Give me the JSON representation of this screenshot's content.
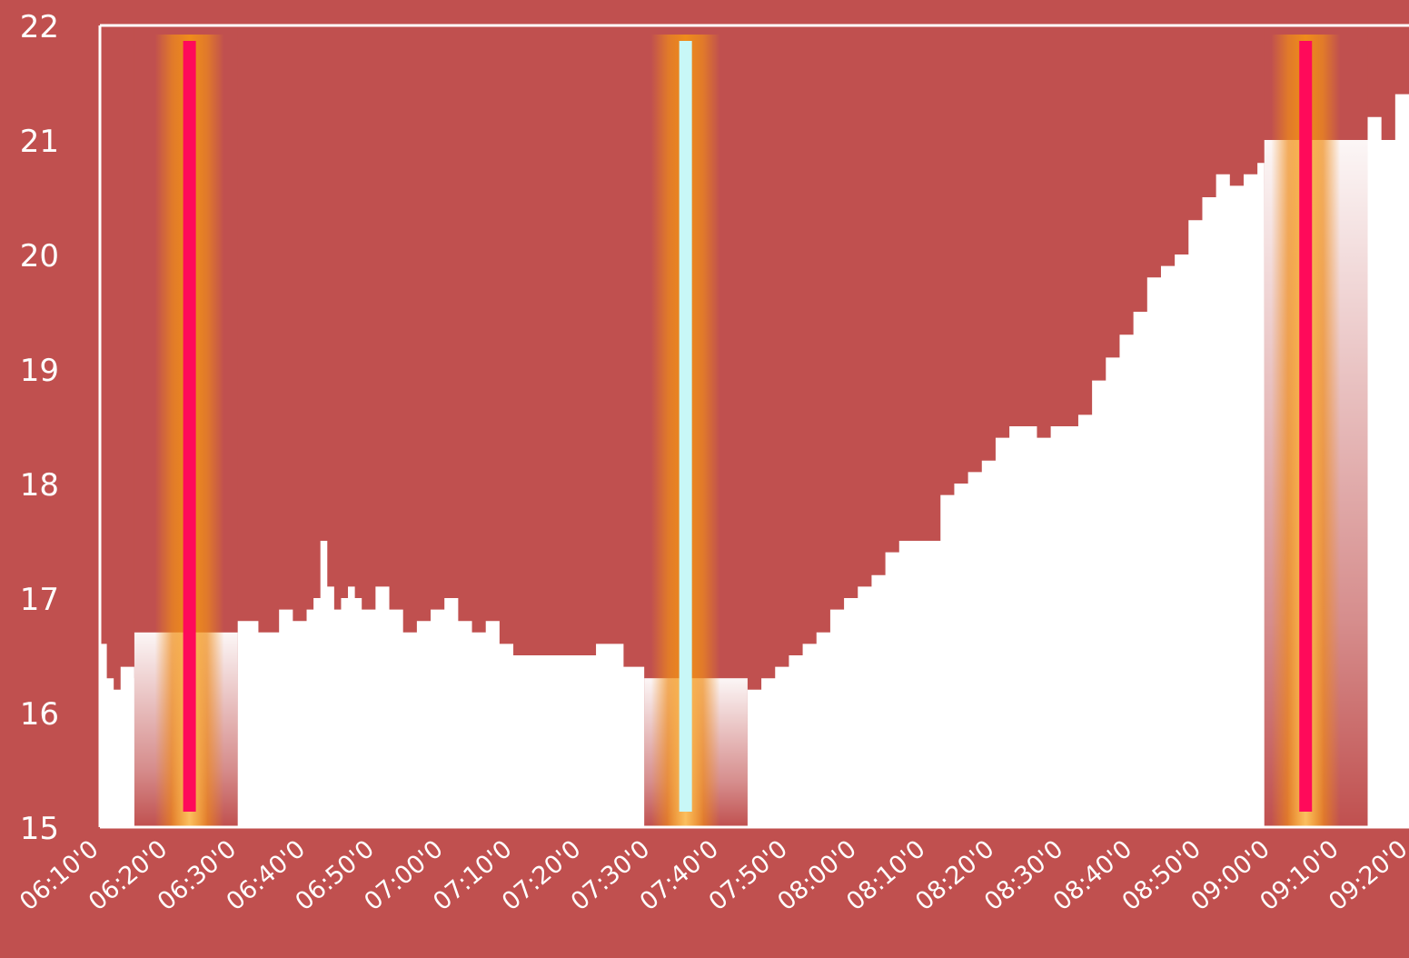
{
  "chart_data": {
    "type": "area",
    "title": "",
    "xlabel": "",
    "ylabel": "",
    "ylim": [
      15,
      22
    ],
    "xlim": [
      "06:10",
      "09:20"
    ],
    "grid": false,
    "legend": "none",
    "y_ticks": [
      "15",
      "16",
      "17",
      "18",
      "19",
      "20",
      "21",
      "22"
    ],
    "x_ticks": [
      "06:10'0",
      "06:20'0",
      "06:30'0",
      "06:40'0",
      "06:50'0",
      "07:00'0",
      "07:10'0",
      "07:20'0",
      "07:30'0",
      "07:40'0",
      "07:50'0",
      "08:00'0",
      "08:10'0",
      "08:20'0",
      "08:30'0",
      "08:40'0",
      "08:50'0",
      "09:00'0",
      "09:10'0",
      "09:20'0"
    ],
    "series": [
      {
        "x": [
          "06:10",
          "06:11",
          "06:12",
          "06:13",
          "06:14",
          "06:15",
          "06:16",
          "06:18",
          "06:20",
          "06:22",
          "06:24",
          "06:26",
          "06:28",
          "06:30",
          "06:33",
          "06:36",
          "06:38",
          "06:40",
          "06:41",
          "06:42",
          "06:43",
          "06:44",
          "06:45",
          "06:46",
          "06:47",
          "06:48",
          "06:50",
          "06:52",
          "06:54",
          "06:56",
          "06:58",
          "07:00",
          "07:02",
          "07:04",
          "07:06",
          "07:08",
          "07:10",
          "07:14",
          "07:18",
          "07:22",
          "07:26",
          "07:30",
          "07:33",
          "07:36",
          "07:38",
          "07:40",
          "07:42",
          "07:44",
          "07:46",
          "07:48",
          "07:50",
          "07:52",
          "07:54",
          "07:56",
          "07:58",
          "08:00",
          "08:02",
          "08:04",
          "08:06",
          "08:08",
          "08:10",
          "08:12",
          "08:14",
          "08:16",
          "08:18",
          "08:20",
          "08:22",
          "08:24",
          "08:26",
          "08:28",
          "08:30",
          "08:32",
          "08:34",
          "08:36",
          "08:38",
          "08:40",
          "08:42",
          "08:44",
          "08:46",
          "08:48",
          "08:50",
          "08:52",
          "08:54",
          "08:56",
          "08:58",
          "09:00",
          "09:02",
          "09:04",
          "09:06",
          "09:08",
          "09:10",
          "09:12",
          "09:14",
          "09:16",
          "09:18",
          "09:20"
        ],
        "values": [
          16.6,
          16.3,
          16.2,
          16.4,
          16.4,
          16.3,
          16.4,
          16.4,
          16.6,
          16.7,
          16.8,
          16.9,
          16.8,
          16.8,
          16.7,
          16.9,
          16.8,
          16.9,
          17.0,
          17.5,
          17.1,
          16.9,
          17.0,
          17.1,
          17.0,
          16.9,
          17.1,
          16.9,
          16.7,
          16.8,
          16.9,
          17.0,
          16.8,
          16.7,
          16.8,
          16.6,
          16.5,
          16.5,
          16.5,
          16.6,
          16.4,
          16.5,
          16.4,
          16.3,
          16.3,
          16.2,
          16.2,
          16.2,
          16.3,
          16.4,
          16.5,
          16.6,
          16.7,
          16.9,
          17.0,
          17.1,
          17.2,
          17.4,
          17.5,
          17.5,
          17.5,
          17.9,
          18.0,
          18.1,
          18.2,
          18.4,
          18.5,
          18.5,
          18.4,
          18.5,
          18.5,
          18.6,
          18.9,
          19.1,
          19.3,
          19.5,
          19.8,
          19.9,
          20.0,
          20.3,
          20.5,
          20.7,
          20.6,
          20.7,
          20.8,
          20.9,
          20.8,
          20.6,
          20.5,
          20.9,
          21.0,
          21.1,
          21.2,
          21.0,
          21.4,
          21.5
        ]
      }
    ],
    "markers": [
      {
        "x": "06:23",
        "color": "#ff0a5a",
        "band_start": "06:15",
        "band_end": "06:30",
        "fill_top": 16.7
      },
      {
        "x": "07:35",
        "color": "#c8f7f7",
        "band_start": "07:29",
        "band_end": "07:44",
        "fill_top": 16.3
      },
      {
        "x": "09:05",
        "color": "#ff0a5a",
        "band_start": "08:59",
        "band_end": "09:14",
        "fill_top": 21.0
      }
    ],
    "colors": {
      "background": "#c0504f",
      "area": "#ffffff",
      "glow": "#ef8c1a",
      "marker_magenta": "#ff0a5a",
      "marker_cyan": "#c8f7f7"
    }
  }
}
